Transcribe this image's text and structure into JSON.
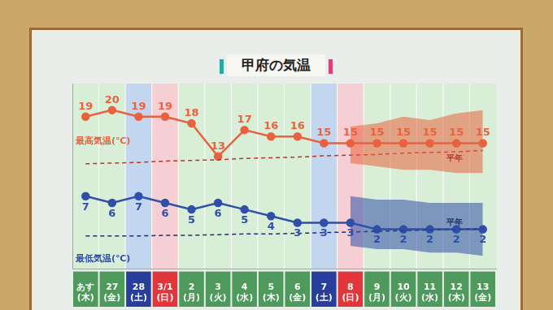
{
  "chart_data": {
    "type": "line",
    "title": "甲府の気温",
    "categories": [
      "あす(木)",
      "27(金)",
      "28(土)",
      "3/1(日)",
      "2(月)",
      "3(火)",
      "4(水)",
      "5(木)",
      "6(金)",
      "7(土)",
      "8(日)",
      "9(月)",
      "10(火)",
      "11(水)",
      "12(木)",
      "13(金)"
    ],
    "series": [
      {
        "name": "最高気温(℃)",
        "color": "#e8623f",
        "marker": "circle",
        "line_style": "solid",
        "data_labels": true,
        "values": [
          19,
          20,
          19,
          19,
          18,
          13,
          17,
          16,
          16,
          15,
          15,
          15,
          15,
          15,
          15,
          15
        ],
        "range_low": [
          null,
          null,
          null,
          null,
          null,
          null,
          null,
          null,
          null,
          null,
          12,
          11.5,
          11,
          11,
          10.5,
          10.5
        ],
        "range_high": [
          null,
          null,
          null,
          null,
          null,
          null,
          null,
          null,
          null,
          null,
          17.5,
          18,
          19,
          18.5,
          19.5,
          20
        ]
      },
      {
        "name": "平年",
        "color": "#b8352a",
        "line_style": "dashed",
        "data_labels": false,
        "values": [
          11.9,
          12.0,
          12.1,
          12.3,
          12.4,
          12.5,
          12.7,
          12.8,
          12.9,
          13.1,
          13.2,
          13.3,
          13.5,
          13.6,
          13.7,
          13.9
        ]
      },
      {
        "name": "最低気温(℃)",
        "color": "#2f4fa8",
        "marker": "circle",
        "line_style": "solid",
        "data_labels": true,
        "values": [
          7,
          6,
          7,
          6,
          5,
          6,
          5,
          4,
          3,
          3,
          3,
          2,
          2,
          2,
          2,
          2
        ],
        "range_low": [
          null,
          null,
          null,
          null,
          null,
          null,
          null,
          null,
          null,
          null,
          -0.5,
          -1,
          -1,
          -1.5,
          -1.5,
          -2
        ],
        "range_high": [
          null,
          null,
          null,
          null,
          null,
          null,
          null,
          null,
          null,
          null,
          7,
          6.5,
          6.5,
          6,
          6,
          6
        ]
      },
      {
        "name": "平年",
        "color": "#1e2f6e",
        "line_style": "dashed",
        "data_labels": false,
        "values": [
          1.0,
          1.0,
          1.0,
          1.1,
          1.1,
          1.2,
          1.3,
          1.3,
          1.4,
          1.5,
          1.6,
          1.7,
          1.8,
          1.9,
          2.0,
          2.1
        ]
      }
    ],
    "ylim": [
      -4,
      24
    ],
    "grid": false,
    "legend": "none",
    "tick_labels": "x"
  }
}
